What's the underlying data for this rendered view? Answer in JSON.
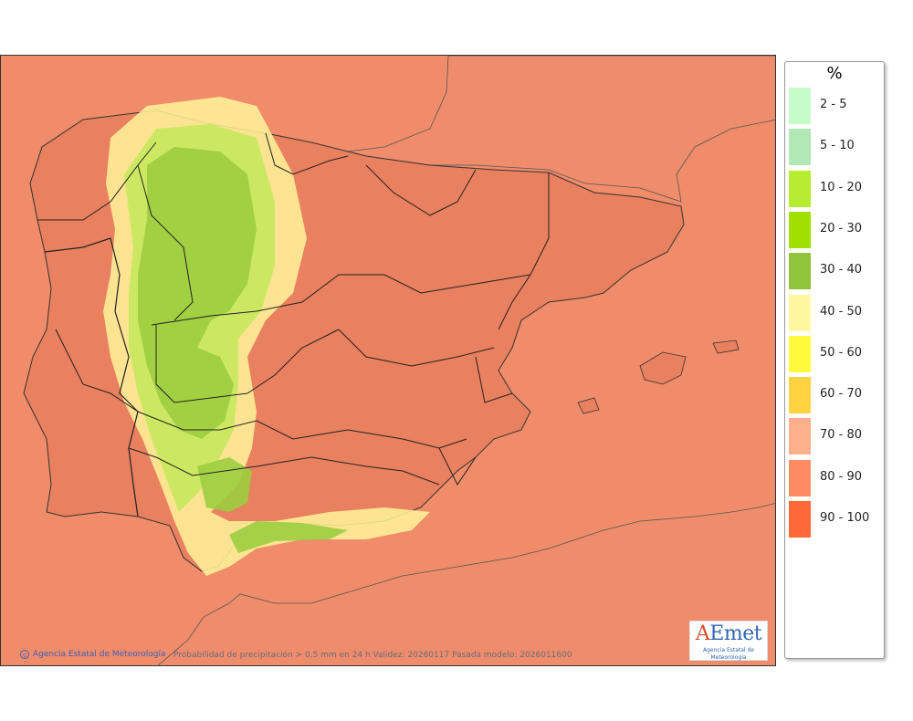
{
  "legend": {
    "title": "%",
    "items": [
      {
        "label": "2 - 5",
        "color": "#c6fcc8"
      },
      {
        "label": "5 - 10",
        "color": "#b2e8b6"
      },
      {
        "label": "10 - 20",
        "color": "#b6ee2f"
      },
      {
        "label": "20 - 30",
        "color": "#a0e000"
      },
      {
        "label": "30 - 40",
        "color": "#90c43a"
      },
      {
        "label": "40 - 50",
        "color": "#fff7a0"
      },
      {
        "label": "50 - 60",
        "color": "#fffa3c"
      },
      {
        "label": "60 - 70",
        "color": "#ffd240"
      },
      {
        "label": "70 - 80",
        "color": "#ffb08a"
      },
      {
        "label": "80 - 90",
        "color": "#ff8c64"
      },
      {
        "label": "90 - 100",
        "color": "#ff6a38"
      }
    ]
  },
  "footer": {
    "credit": "Agencia Estatal de Meteorología",
    "caption": "Probabilidad de precipitación > 0.5 mm en 24 h Validez: 20260117 Pasada modelo: 2026011600"
  },
  "logo": {
    "word": "AEmet",
    "sub": "Agencia Estatal de Meteorología"
  },
  "colors": {
    "sea": "#f08c6a",
    "land_high": "#e3775a",
    "border": "#333333"
  }
}
